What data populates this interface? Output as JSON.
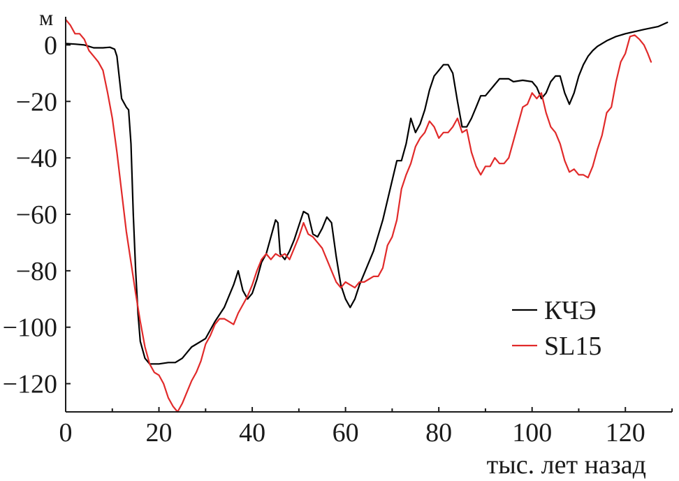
{
  "chart_data": {
    "type": "line",
    "title": "",
    "ylabel": "м",
    "xlabel": "тыс. лет назад",
    "xlim": [
      0,
      130
    ],
    "ylim": [
      -130,
      10
    ],
    "x_ticks": [
      0,
      20,
      40,
      60,
      80,
      100,
      120
    ],
    "x_tick_labels": [
      "0",
      "20",
      "40",
      "60",
      "80",
      "100",
      "120"
    ],
    "y_ticks": [
      0,
      -20,
      -40,
      -60,
      -80,
      -100,
      -120
    ],
    "y_tick_labels": [
      "0",
      "−20",
      "−40",
      "−60",
      "−80",
      "−100",
      "−120"
    ],
    "grid": false,
    "legend_position": "bottom-right",
    "series": [
      {
        "name": "КЧЭ",
        "color": "#000000",
        "points": [
          [
            0,
            0.5
          ],
          [
            2,
            0.3
          ],
          [
            4,
            0
          ],
          [
            5,
            -0.5
          ],
          [
            6,
            -1
          ],
          [
            8,
            -1
          ],
          [
            9.5,
            -0.8
          ],
          [
            10.5,
            -1.5
          ],
          [
            11,
            -4
          ],
          [
            12,
            -19
          ],
          [
            13,
            -22
          ],
          [
            13.5,
            -23
          ],
          [
            14,
            -35
          ],
          [
            14.5,
            -60
          ],
          [
            15,
            -80
          ],
          [
            15.5,
            -95
          ],
          [
            16,
            -105
          ],
          [
            17,
            -111
          ],
          [
            18,
            -113
          ],
          [
            20,
            -113
          ],
          [
            22,
            -112.5
          ],
          [
            23.5,
            -112.5
          ],
          [
            25,
            -111
          ],
          [
            26,
            -109
          ],
          [
            27,
            -107
          ],
          [
            28,
            -106
          ],
          [
            30,
            -104
          ],
          [
            32,
            -98
          ],
          [
            34,
            -93
          ],
          [
            35,
            -89
          ],
          [
            36,
            -85
          ],
          [
            37,
            -80
          ],
          [
            38,
            -87
          ],
          [
            39,
            -90
          ],
          [
            40,
            -88
          ],
          [
            41,
            -83
          ],
          [
            42,
            -77
          ],
          [
            43,
            -74
          ],
          [
            44,
            -68
          ],
          [
            45,
            -62
          ],
          [
            45.5,
            -63
          ],
          [
            46,
            -74
          ],
          [
            47,
            -76
          ],
          [
            48,
            -73
          ],
          [
            49,
            -69
          ],
          [
            50,
            -64
          ],
          [
            51,
            -59
          ],
          [
            52,
            -60
          ],
          [
            53,
            -67
          ],
          [
            54,
            -68
          ],
          [
            55,
            -65
          ],
          [
            56,
            -61
          ],
          [
            57,
            -63
          ],
          [
            58,
            -75
          ],
          [
            59,
            -85
          ],
          [
            60,
            -90
          ],
          [
            61,
            -93
          ],
          [
            62,
            -90
          ],
          [
            63,
            -85
          ],
          [
            64,
            -81
          ],
          [
            66,
            -73
          ],
          [
            68,
            -62
          ],
          [
            70,
            -48
          ],
          [
            71,
            -41
          ],
          [
            72,
            -41
          ],
          [
            73,
            -35
          ],
          [
            74,
            -26
          ],
          [
            75,
            -31
          ],
          [
            76,
            -28
          ],
          [
            77,
            -23
          ],
          [
            78,
            -16
          ],
          [
            79,
            -11
          ],
          [
            80,
            -9
          ],
          [
            81,
            -7
          ],
          [
            82,
            -7
          ],
          [
            83,
            -10
          ],
          [
            84,
            -20
          ],
          [
            85,
            -29
          ],
          [
            86,
            -29
          ],
          [
            87,
            -26
          ],
          [
            88,
            -22
          ],
          [
            89,
            -18
          ],
          [
            90,
            -18
          ],
          [
            91,
            -16
          ],
          [
            92,
            -14
          ],
          [
            93,
            -12
          ],
          [
            95,
            -12
          ],
          [
            96,
            -13
          ],
          [
            98,
            -12.5
          ],
          [
            100,
            -13
          ],
          [
            101,
            -15
          ],
          [
            102,
            -19
          ],
          [
            103,
            -17
          ],
          [
            104,
            -13
          ],
          [
            105,
            -11
          ],
          [
            106,
            -11
          ],
          [
            107,
            -17
          ],
          [
            108,
            -21
          ],
          [
            109,
            -17
          ],
          [
            110,
            -11
          ],
          [
            111,
            -7
          ],
          [
            112,
            -4
          ],
          [
            113,
            -2
          ],
          [
            114,
            -0.5
          ],
          [
            116,
            1.5
          ],
          [
            118,
            3
          ],
          [
            120,
            4
          ],
          [
            124,
            5.5
          ],
          [
            127,
            6.5
          ],
          [
            129,
            8
          ]
        ]
      },
      {
        "name": "SL15",
        "color": "#e12a2a",
        "points": [
          [
            0,
            9
          ],
          [
            1,
            7
          ],
          [
            2,
            4
          ],
          [
            3,
            4
          ],
          [
            4,
            2
          ],
          [
            5,
            -2
          ],
          [
            6,
            -4
          ],
          [
            7,
            -6
          ],
          [
            8,
            -9
          ],
          [
            9,
            -17
          ],
          [
            10,
            -26
          ],
          [
            11,
            -38
          ],
          [
            12,
            -52
          ],
          [
            13,
            -66
          ],
          [
            14,
            -77
          ],
          [
            15,
            -88
          ],
          [
            16,
            -98
          ],
          [
            17,
            -107
          ],
          [
            18,
            -113
          ],
          [
            19,
            -116
          ],
          [
            20,
            -117
          ],
          [
            21,
            -120
          ],
          [
            22,
            -125
          ],
          [
            23,
            -128
          ],
          [
            24,
            -130
          ],
          [
            25,
            -127
          ],
          [
            26,
            -123
          ],
          [
            27,
            -119
          ],
          [
            28,
            -116
          ],
          [
            29,
            -112
          ],
          [
            30,
            -106
          ],
          [
            31,
            -103
          ],
          [
            32,
            -99
          ],
          [
            33,
            -97
          ],
          [
            34,
            -97
          ],
          [
            35,
            -98
          ],
          [
            36,
            -99
          ],
          [
            37,
            -95
          ],
          [
            38,
            -92
          ],
          [
            39,
            -89
          ],
          [
            40,
            -85
          ],
          [
            41,
            -80
          ],
          [
            42,
            -76
          ],
          [
            43,
            -74
          ],
          [
            44,
            -76
          ],
          [
            45,
            -74
          ],
          [
            46,
            -75
          ],
          [
            47,
            -74
          ],
          [
            48,
            -76
          ],
          [
            49,
            -72
          ],
          [
            50,
            -68
          ],
          [
            51,
            -63
          ],
          [
            52,
            -67
          ],
          [
            53,
            -68
          ],
          [
            54,
            -70
          ],
          [
            55,
            -72
          ],
          [
            56,
            -76
          ],
          [
            57,
            -80
          ],
          [
            58,
            -84
          ],
          [
            59,
            -86
          ],
          [
            60,
            -84
          ],
          [
            61,
            -85
          ],
          [
            62,
            -86
          ],
          [
            63,
            -84
          ],
          [
            64,
            -84
          ],
          [
            65,
            -83
          ],
          [
            66,
            -82
          ],
          [
            67,
            -82
          ],
          [
            68,
            -79
          ],
          [
            69,
            -71
          ],
          [
            70,
            -68
          ],
          [
            71,
            -62
          ],
          [
            72,
            -51
          ],
          [
            73,
            -46
          ],
          [
            74,
            -42
          ],
          [
            75,
            -36
          ],
          [
            76,
            -33
          ],
          [
            77,
            -31
          ],
          [
            78,
            -27
          ],
          [
            79,
            -29
          ],
          [
            80,
            -33
          ],
          [
            81,
            -31
          ],
          [
            82,
            -31
          ],
          [
            83,
            -29
          ],
          [
            84,
            -26
          ],
          [
            85,
            -31
          ],
          [
            86,
            -30
          ],
          [
            87,
            -38
          ],
          [
            88,
            -43
          ],
          [
            89,
            -46
          ],
          [
            90,
            -43
          ],
          [
            91,
            -43
          ],
          [
            92,
            -40
          ],
          [
            93,
            -42
          ],
          [
            94,
            -42
          ],
          [
            95,
            -40
          ],
          [
            96,
            -34
          ],
          [
            97,
            -28
          ],
          [
            98,
            -22
          ],
          [
            99,
            -21
          ],
          [
            100,
            -17
          ],
          [
            101,
            -19
          ],
          [
            102,
            -17
          ],
          [
            103,
            -24
          ],
          [
            104,
            -29
          ],
          [
            105,
            -31
          ],
          [
            106,
            -35
          ],
          [
            107,
            -41
          ],
          [
            108,
            -45
          ],
          [
            109,
            -44
          ],
          [
            110,
            -46
          ],
          [
            111,
            -46
          ],
          [
            112,
            -47
          ],
          [
            113,
            -43
          ],
          [
            114,
            -37
          ],
          [
            115,
            -32
          ],
          [
            116,
            -24
          ],
          [
            117,
            -22
          ],
          [
            118,
            -13
          ],
          [
            119,
            -6
          ],
          [
            120,
            -3
          ],
          [
            121,
            3
          ],
          [
            122,
            3.5
          ],
          [
            123,
            2
          ],
          [
            124,
            0
          ],
          [
            124.8,
            -3
          ],
          [
            125.5,
            -6
          ]
        ]
      }
    ]
  }
}
